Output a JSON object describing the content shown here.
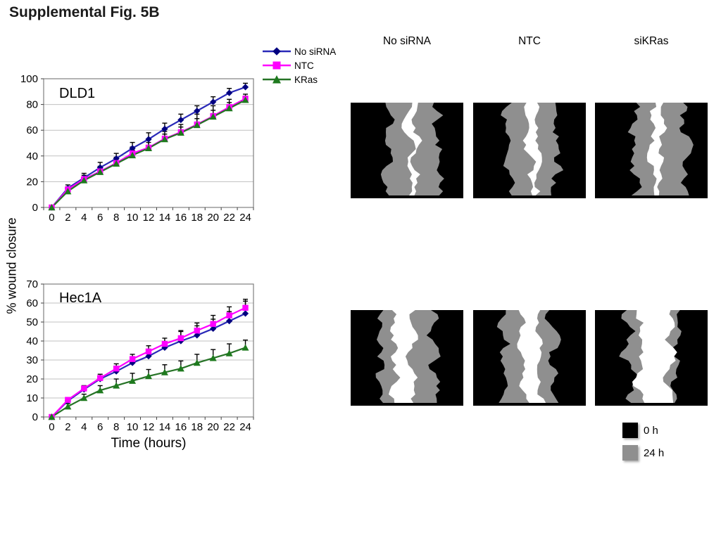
{
  "figure_title": "Supplemental Fig. 5B",
  "y_axis_label": "% wound closure",
  "x_axis_label": "Time (hours)",
  "panel_columns": [
    "No siRNA",
    "NTC",
    "siKRas"
  ],
  "panel_legend": [
    {
      "label": "0 h",
      "color": "#000000"
    },
    {
      "label": "24 h",
      "color": "#8f8f8f"
    }
  ],
  "colors": {
    "gridline": "#c0c0c0",
    "plot_border": "#808080",
    "error_bar": "#000000",
    "wound_black": "#000000",
    "wound_gray": "#8f8f8f",
    "wound_white": "#ffffff"
  },
  "chart_data": [
    {
      "type": "line",
      "title": "DLD1",
      "x": [
        0,
        2,
        4,
        6,
        8,
        10,
        12,
        14,
        16,
        18,
        20,
        22,
        24
      ],
      "ylim": [
        0,
        100
      ],
      "ytick_step": 20,
      "grid": true,
      "legend_position": "top-right-outside",
      "series": [
        {
          "name": "No siRNA",
          "marker": "diamond",
          "color_line": "#2929b8",
          "color_marker": "#000080",
          "values": [
            0,
            15,
            23,
            31,
            38,
            46,
            53,
            61,
            68,
            75,
            82,
            89,
            93.5
          ],
          "err": [
            0.5,
            2.5,
            3.5,
            4,
            4,
            4.5,
            5,
            4.5,
            4.5,
            4,
            4,
            3.5,
            3
          ]
        },
        {
          "name": "NTC",
          "marker": "square",
          "color_line": "#ff00ff",
          "color_marker": "#ff00ff",
          "values": [
            0,
            14,
            22,
            28,
            34.5,
            42,
            46.5,
            53.5,
            58.5,
            64.5,
            71,
            78,
            84.5
          ],
          "err": [
            0.5,
            2,
            3,
            4,
            4.5,
            5,
            6,
            5.5,
            6,
            8,
            8,
            6,
            3.5
          ]
        },
        {
          "name": "KRas",
          "marker": "triangle",
          "color_line": "#267326",
          "color_marker": "#1e7a1e",
          "values": [
            0,
            12.5,
            21,
            27.5,
            34,
            40.5,
            46,
            53,
            58,
            64,
            70.5,
            77,
            83.5
          ],
          "err": [
            0.5,
            1.5,
            2.5,
            3,
            3.5,
            4,
            4.5,
            4,
            4.5,
            5,
            5,
            4.5,
            3
          ]
        }
      ]
    },
    {
      "type": "line",
      "title": "Hec1A",
      "x": [
        0,
        2,
        4,
        6,
        8,
        10,
        12,
        14,
        16,
        18,
        20,
        22,
        24
      ],
      "ylim": [
        0,
        70
      ],
      "ytick_step": 10,
      "grid": true,
      "series": [
        {
          "name": "No siRNA",
          "marker": "diamond",
          "color_line": "#2929b8",
          "color_marker": "#000080",
          "values": [
            0,
            8.5,
            14.5,
            20,
            24,
            28.5,
            32,
            36.5,
            40,
            43,
            46.5,
            50.5,
            54.5
          ],
          "err": [
            0.5,
            1,
            1.5,
            1.5,
            2,
            2.5,
            3,
            3,
            5,
            5,
            5,
            5,
            6.5
          ]
        },
        {
          "name": "NTC",
          "marker": "square",
          "color_line": "#ff00ff",
          "color_marker": "#ff00ff",
          "values": [
            0,
            9,
            15,
            20.5,
            25.5,
            30.5,
            34.5,
            38.5,
            41.5,
            45.5,
            49,
            53.5,
            57.5
          ],
          "err": [
            0.5,
            1,
            1.5,
            2,
            2.5,
            2.5,
            3,
            3,
            4,
            4,
            4.5,
            4.5,
            4.5
          ]
        },
        {
          "name": "KRas",
          "marker": "triangle",
          "color_line": "#267326",
          "color_marker": "#1e7a1e",
          "values": [
            0,
            5.5,
            10,
            14,
            16.5,
            19,
            21.5,
            23.5,
            25.5,
            28.5,
            31,
            33.5,
            36.5
          ],
          "err": [
            0.5,
            1.5,
            2,
            2.5,
            3.5,
            4,
            3.5,
            4,
            4,
            4.5,
            4.5,
            5,
            4
          ]
        }
      ]
    }
  ]
}
